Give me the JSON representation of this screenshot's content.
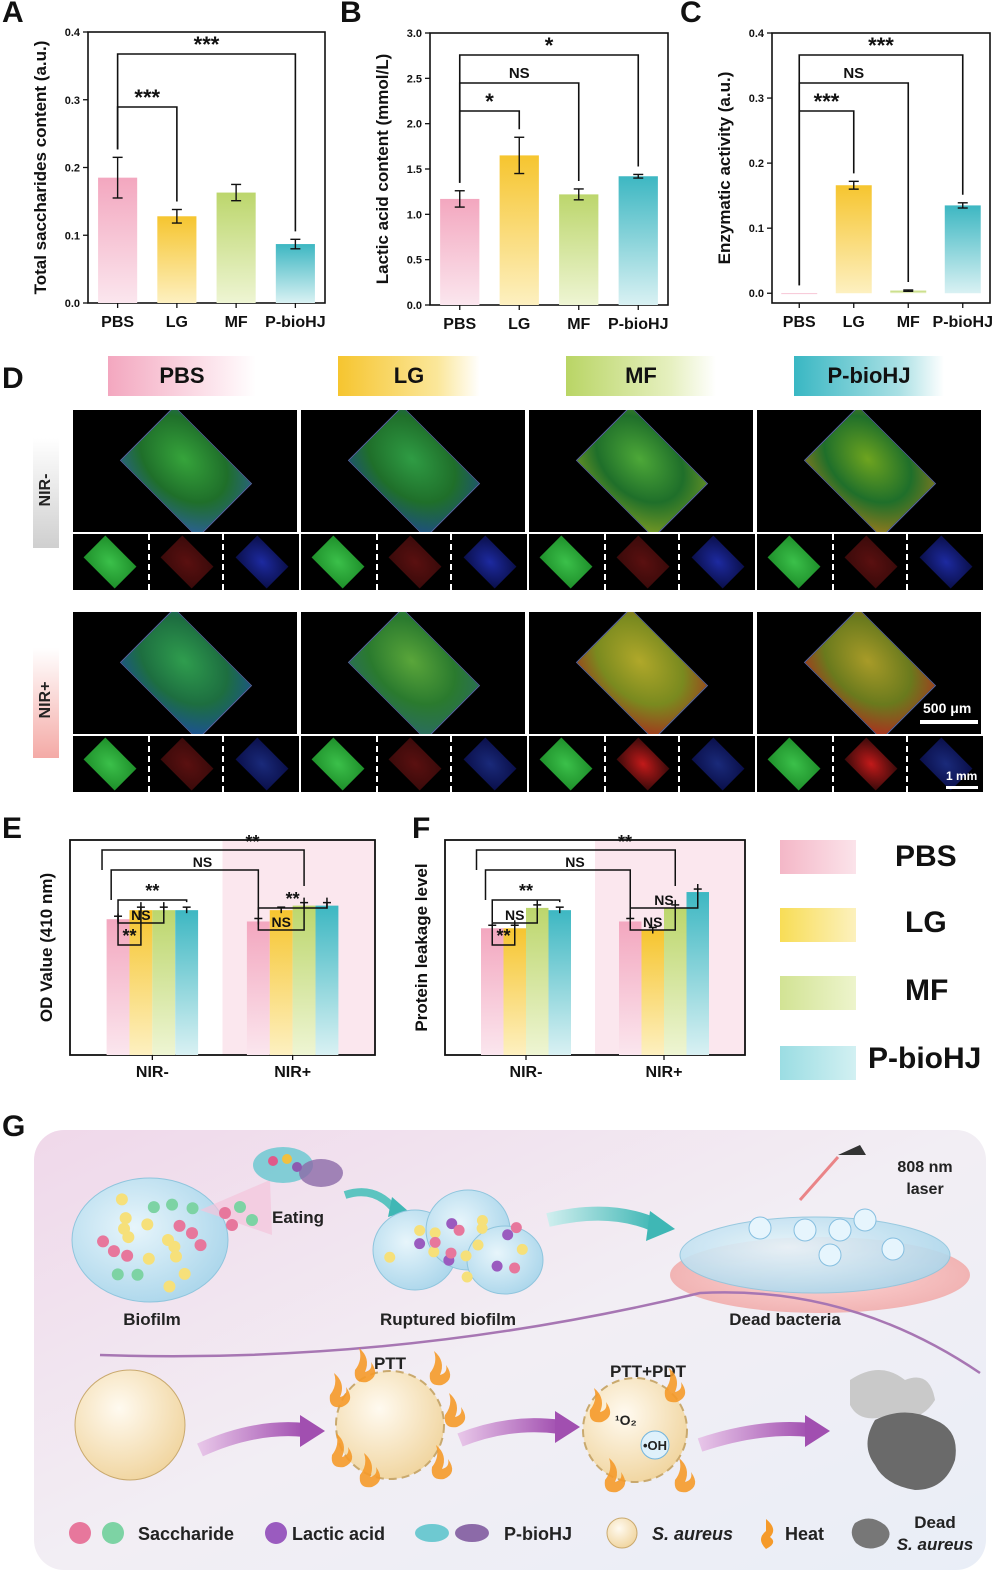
{
  "panels": {
    "A": "A",
    "B": "B",
    "C": "C",
    "D": "D",
    "E": "E",
    "F": "F",
    "G": "G"
  },
  "colors": {
    "PBS": "#f4b8c8",
    "LG": "#f7d44a",
    "MF": "#c9df7f",
    "P-bioHJ": "#5cc8cf"
  },
  "chart_data": [
    {
      "panel": "A",
      "type": "bar",
      "categories": [
        "PBS",
        "LG",
        "MF",
        "P-bioHJ"
      ],
      "values": [
        0.185,
        0.128,
        0.163,
        0.087
      ],
      "errors": [
        0.03,
        0.01,
        0.012,
        0.007
      ],
      "ylabel": "Total saccharides content (a.u.)",
      "ylim": [
        0,
        0.4
      ],
      "yticks": [
        "0.0",
        "0.1",
        "0.2",
        "0.3",
        "0.4"
      ],
      "significance": [
        {
          "from": "PBS",
          "to": "LG",
          "label": "***"
        },
        {
          "from": "PBS",
          "to": "P-bioHJ",
          "label": "***"
        }
      ]
    },
    {
      "panel": "B",
      "type": "bar",
      "categories": [
        "PBS",
        "LG",
        "MF",
        "P-bioHJ"
      ],
      "values": [
        1.17,
        1.65,
        1.22,
        1.42
      ],
      "errors": [
        0.09,
        0.2,
        0.06,
        0.02
      ],
      "ylabel": "Lactic acid content (mmol/L)",
      "ylim": [
        0,
        3.0
      ],
      "yticks": [
        "0.0",
        "0.5",
        "1.0",
        "1.5",
        "2.0",
        "2.5",
        "3.0"
      ],
      "significance": [
        {
          "from": "PBS",
          "to": "LG",
          "label": "*"
        },
        {
          "from": "PBS",
          "to": "MF",
          "label": "NS"
        },
        {
          "from": "PBS",
          "to": "P-bioHJ",
          "label": "*"
        }
      ]
    },
    {
      "panel": "C",
      "type": "bar",
      "categories": [
        "PBS",
        "LG",
        "MF",
        "P-bioHJ"
      ],
      "values": [
        0.0,
        0.166,
        0.004,
        0.135
      ],
      "errors": [
        0.0,
        0.006,
        0.001,
        0.004
      ],
      "ylabel": "Enzymatic activity (a.u.)",
      "ylim": [
        -0.015,
        0.4
      ],
      "yticks": [
        "0.0",
        "0.1",
        "0.2",
        "0.3",
        "0.4"
      ],
      "significance": [
        {
          "from": "PBS",
          "to": "LG",
          "label": "***"
        },
        {
          "from": "PBS",
          "to": "MF",
          "label": "NS"
        },
        {
          "from": "PBS",
          "to": "P-bioHJ",
          "label": "***"
        }
      ]
    },
    {
      "panel": "E",
      "type": "bar",
      "groups": [
        "NIR-",
        "NIR+"
      ],
      "series": [
        {
          "name": "PBS",
          "values": [
            0.6,
            0.59
          ]
        },
        {
          "name": "LG",
          "values": [
            0.64,
            0.64
          ]
        },
        {
          "name": "MF",
          "values": [
            0.64,
            0.66
          ]
        },
        {
          "name": "P-bioHJ",
          "values": [
            0.64,
            0.66
          ]
        }
      ],
      "ylabel": "OD Value (410 nm)",
      "significance_labels": [
        "**",
        "NS",
        "**",
        "NS",
        "**",
        "**"
      ]
    },
    {
      "panel": "F",
      "type": "bar",
      "groups": [
        "NIR-",
        "NIR+"
      ],
      "series": [
        {
          "name": "PBS",
          "values": [
            0.56,
            0.59
          ]
        },
        {
          "name": "LG",
          "values": [
            0.56,
            0.55
          ]
        },
        {
          "name": "MF",
          "values": [
            0.65,
            0.65
          ]
        },
        {
          "name": "P-bioHJ",
          "values": [
            0.64,
            0.72
          ]
        }
      ],
      "ylabel": "Protein leakage level",
      "significance_labels": [
        "**",
        "NS",
        "**",
        "NS",
        "NS",
        "**"
      ]
    }
  ],
  "panelD": {
    "groups": [
      "PBS",
      "LG",
      "MF",
      "P-bioHJ"
    ],
    "rows": [
      "NIR-",
      "NIR+"
    ],
    "scalebar_main": "500 μm",
    "scalebar_small": "1 mm"
  },
  "legendEF": [
    "PBS",
    "LG",
    "MF",
    "P-bioHJ"
  ],
  "panelG": {
    "eating": "Eating",
    "biofilm": "Biofilm",
    "ruptured": "Ruptured biofilm",
    "dead": "Dead bacteria",
    "laser": "808 nm\nlaser",
    "laser1": "808 nm",
    "laser2": "laser",
    "ptt": "PTT",
    "pttpdt": "PTT+PDT",
    "o2": "¹O₂",
    "oh": "•OH",
    "legend": {
      "saccharide": "Saccharide",
      "lactic": "Lactic acid",
      "pbiohj": "P-bioHJ",
      "saureus": "S. aureus",
      "heat": "Heat",
      "dead1": "Dead",
      "dead2": "S. aureus"
    }
  }
}
